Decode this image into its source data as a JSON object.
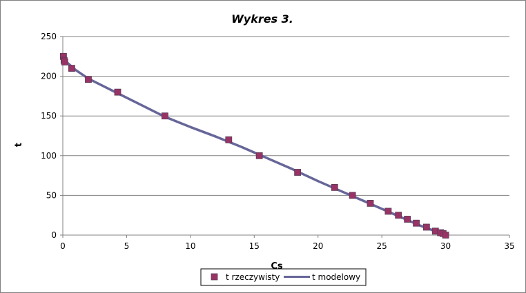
{
  "chart_data": {
    "type": "scatter",
    "title": "Wykres 3.",
    "xlabel": "Cs",
    "ylabel": "t",
    "xlim": [
      0,
      35
    ],
    "ylim": [
      0,
      250
    ],
    "x_ticks": [
      0,
      5,
      10,
      15,
      20,
      25,
      30,
      35
    ],
    "y_ticks": [
      0,
      50,
      100,
      150,
      200,
      250
    ],
    "grid": "horizontal",
    "legend_position": "bottom",
    "series": [
      {
        "name": "t rzeczywisty",
        "kind": "markers",
        "color": "#993366",
        "points": [
          [
            0.05,
            225
          ],
          [
            0.1,
            220
          ],
          [
            0.15,
            218
          ],
          [
            0.7,
            210
          ],
          [
            2.0,
            196
          ],
          [
            4.3,
            180
          ],
          [
            8.0,
            150
          ],
          [
            13.0,
            120
          ],
          [
            15.4,
            100
          ],
          [
            18.4,
            79
          ],
          [
            21.3,
            60
          ],
          [
            22.7,
            50
          ],
          [
            24.1,
            40
          ],
          [
            25.5,
            30
          ],
          [
            26.3,
            25
          ],
          [
            27.0,
            20
          ],
          [
            27.7,
            15
          ],
          [
            28.5,
            10
          ],
          [
            29.2,
            5
          ],
          [
            29.6,
            3
          ],
          [
            29.8,
            2
          ],
          [
            30.0,
            0
          ]
        ]
      },
      {
        "name": "t modelowy",
        "kind": "line",
        "color": "#666699",
        "points": [
          [
            0.0,
            222
          ],
          [
            1.0,
            208
          ],
          [
            2.0,
            197
          ],
          [
            4.0,
            181
          ],
          [
            6.0,
            165
          ],
          [
            8.0,
            149
          ],
          [
            10.0,
            136
          ],
          [
            12.0,
            124
          ],
          [
            14.0,
            111
          ],
          [
            16.0,
            97
          ],
          [
            18.0,
            83
          ],
          [
            20.0,
            68
          ],
          [
            22.0,
            54
          ],
          [
            24.0,
            40
          ],
          [
            26.0,
            26
          ],
          [
            28.0,
            12
          ],
          [
            30.0,
            0
          ]
        ]
      }
    ]
  },
  "colors": {
    "gridline": "#808080",
    "axis": "#808080",
    "marker_fill": "#993366",
    "line": "#666699"
  }
}
